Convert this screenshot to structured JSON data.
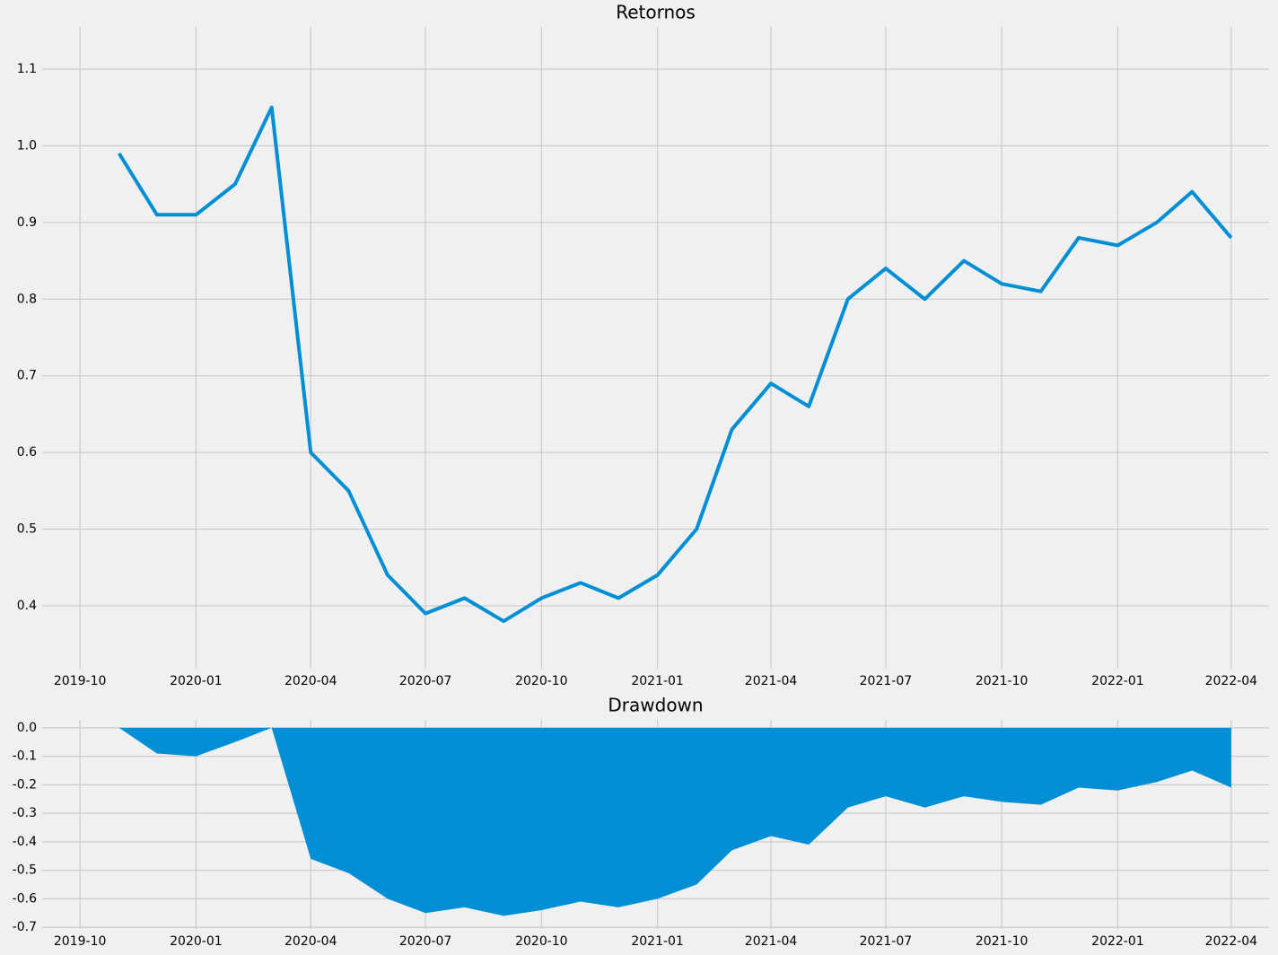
{
  "chart_data": [
    {
      "type": "line",
      "title": "Retornos",
      "x": [
        "2019-11",
        "2019-12",
        "2020-01",
        "2020-02",
        "2020-03",
        "2020-04",
        "2020-05",
        "2020-06",
        "2020-07",
        "2020-08",
        "2020-09",
        "2020-10",
        "2020-11",
        "2020-12",
        "2021-01",
        "2021-02",
        "2021-03",
        "2021-04",
        "2021-05",
        "2021-06",
        "2021-07",
        "2021-08",
        "2021-09",
        "2021-10",
        "2021-11",
        "2021-12",
        "2022-01",
        "2022-02",
        "2022-03",
        "2022-04"
      ],
      "series": [
        {
          "color": "#008fd5",
          "values": [
            0.99,
            0.91,
            0.91,
            0.95,
            1.05,
            0.6,
            0.55,
            0.44,
            0.39,
            0.41,
            0.38,
            0.41,
            0.43,
            0.41,
            0.44,
            0.5,
            0.63,
            0.69,
            0.66,
            0.8,
            0.84,
            0.8,
            0.85,
            0.82,
            0.81,
            0.88,
            0.87,
            0.9,
            0.94,
            0.88
          ]
        }
      ],
      "xlim": [
        "2019-09",
        "2022-05"
      ],
      "xticks": [
        "2019-10",
        "2020-01",
        "2020-04",
        "2020-07",
        "2020-10",
        "2021-01",
        "2021-04",
        "2021-07",
        "2021-10",
        "2022-01",
        "2022-04"
      ],
      "ylim": [
        0.318,
        1.155
      ],
      "yticks": [
        0.4,
        0.5,
        0.6,
        0.7,
        0.8,
        0.9,
        {
          "value": 1,
          "label": "1.0"
        },
        1.1
      ],
      "grid": true
    },
    {
      "type": "area",
      "title": "Drawdown",
      "x": [
        "2019-11",
        "2019-12",
        "2020-01",
        "2020-02",
        "2020-03",
        "2020-04",
        "2020-05",
        "2020-06",
        "2020-07",
        "2020-08",
        "2020-09",
        "2020-10",
        "2020-11",
        "2020-12",
        "2021-01",
        "2021-02",
        "2021-03",
        "2021-04",
        "2021-05",
        "2021-06",
        "2021-07",
        "2021-08",
        "2021-09",
        "2021-10",
        "2021-11",
        "2021-12",
        "2022-01",
        "2022-02",
        "2022-03",
        "2022-04"
      ],
      "series": [
        {
          "color": "#008fd5",
          "values": [
            0,
            -0.09,
            -0.1,
            -0.05,
            0,
            -0.46,
            -0.51,
            -0.6,
            -0.65,
            -0.63,
            -0.66,
            -0.64,
            -0.61,
            -0.63,
            -0.6,
            -0.55,
            -0.43,
            -0.38,
            -0.41,
            -0.28,
            -0.24,
            -0.28,
            -0.24,
            -0.26,
            -0.27,
            -0.21,
            -0.22,
            -0.19,
            -0.15,
            -0.21
          ]
        }
      ],
      "xlim": [
        "2019-09",
        "2022-05"
      ],
      "xticks": [
        "2019-10",
        "2020-01",
        "2020-04",
        "2020-07",
        "2020-10",
        "2021-01",
        "2021-04",
        "2021-07",
        "2021-10",
        "2022-01",
        "2022-04"
      ],
      "ylim": [
        -0.706,
        0.028
      ],
      "yticks": [
        {
          "value": 0,
          "label": "0.0"
        },
        -0.1,
        -0.2,
        -0.3,
        -0.4,
        -0.5,
        -0.6,
        -0.7
      ],
      "grid": true
    }
  ]
}
